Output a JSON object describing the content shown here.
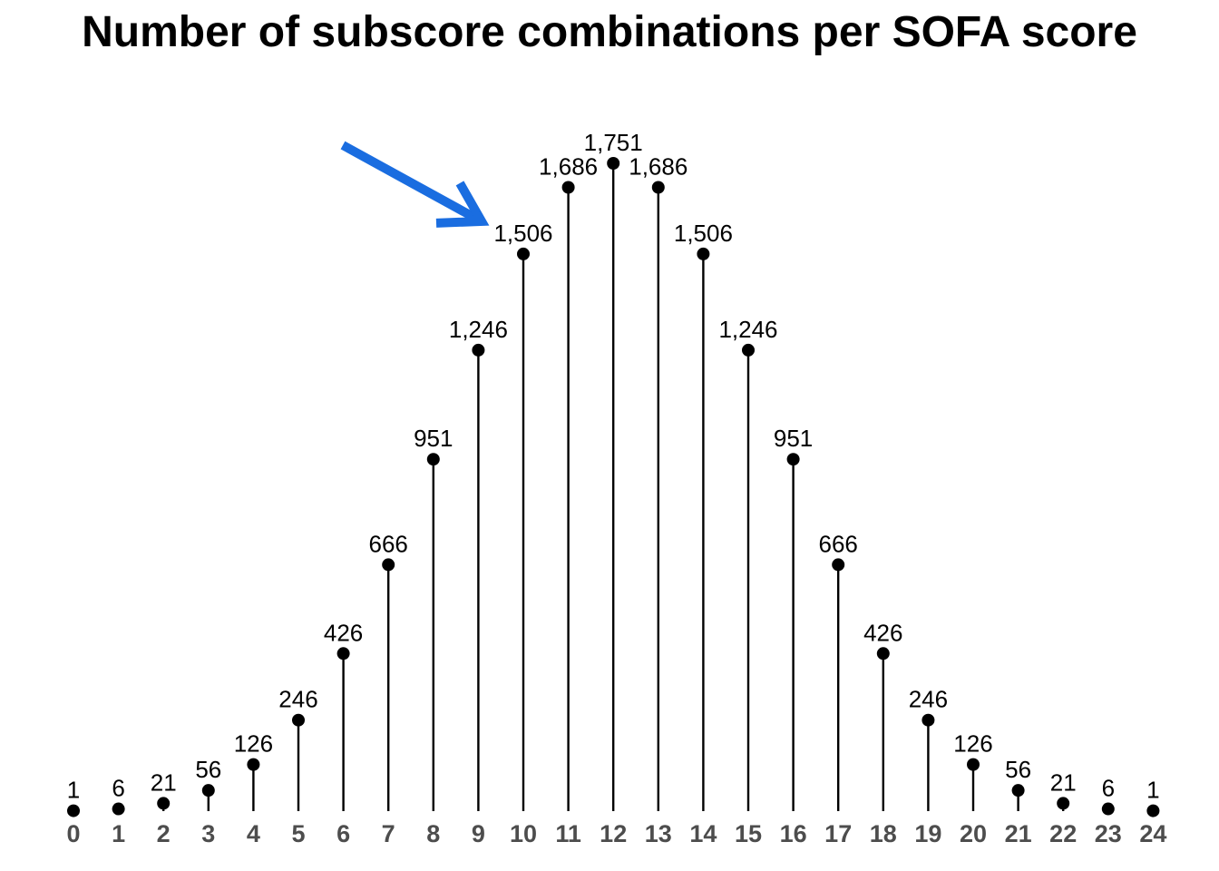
{
  "chart_data": {
    "type": "lollipop",
    "title": "Number of subscore combinations per SOFA score",
    "xlabel": "",
    "ylabel": "",
    "x": [
      0,
      1,
      2,
      3,
      4,
      5,
      6,
      7,
      8,
      9,
      10,
      11,
      12,
      13,
      14,
      15,
      16,
      17,
      18,
      19,
      20,
      21,
      22,
      23,
      24
    ],
    "values": [
      1,
      6,
      21,
      56,
      126,
      246,
      426,
      666,
      951,
      1246,
      1506,
      1686,
      1751,
      1686,
      1506,
      1246,
      951,
      666,
      426,
      246,
      126,
      56,
      21,
      6,
      1
    ],
    "ylim": [
      0,
      1751
    ],
    "grid": false,
    "legend": "none",
    "colors": {
      "stem": "#000000",
      "point": "#000000",
      "arrow": "#1a6de0",
      "tick": "#4d4d4d"
    },
    "annotation": {
      "type": "arrow-icon",
      "points_to_x": 10
    }
  }
}
